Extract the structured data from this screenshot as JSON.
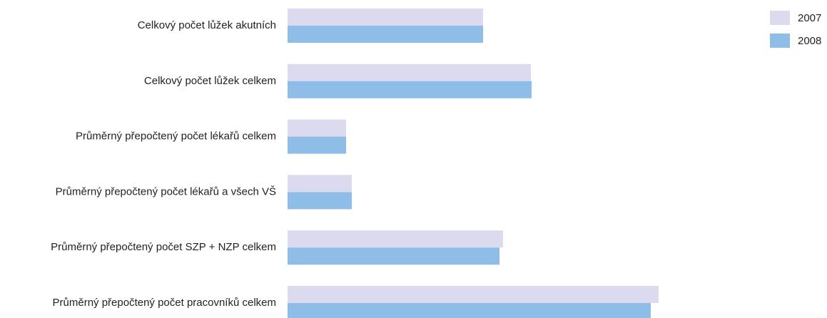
{
  "chart_data": {
    "type": "bar",
    "orientation": "horizontal",
    "categories": [
      "Celkový počet lůžek akutních",
      "Celkový počet lůžek celkem",
      "Průměrný přepočtený počet lékařů celkem",
      "Průměrný přepočtený počet lékařů a všech VŠ",
      "Průměrný přepočtený počet SZP + NZP celkem",
      "Průměrný přepočtený počet pracovníků celkem"
    ],
    "series": [
      {
        "name": "2007",
        "color": "#dcdaee",
        "values": [
          274,
          341,
          82,
          90,
          302,
          520
        ]
      },
      {
        "name": "2008",
        "color": "#8ebde8",
        "values": [
          274,
          342,
          82,
          90,
          297,
          509
        ]
      }
    ],
    "xlim": [
      0,
      600
    ],
    "grid": false,
    "legend_position": "top-right"
  }
}
